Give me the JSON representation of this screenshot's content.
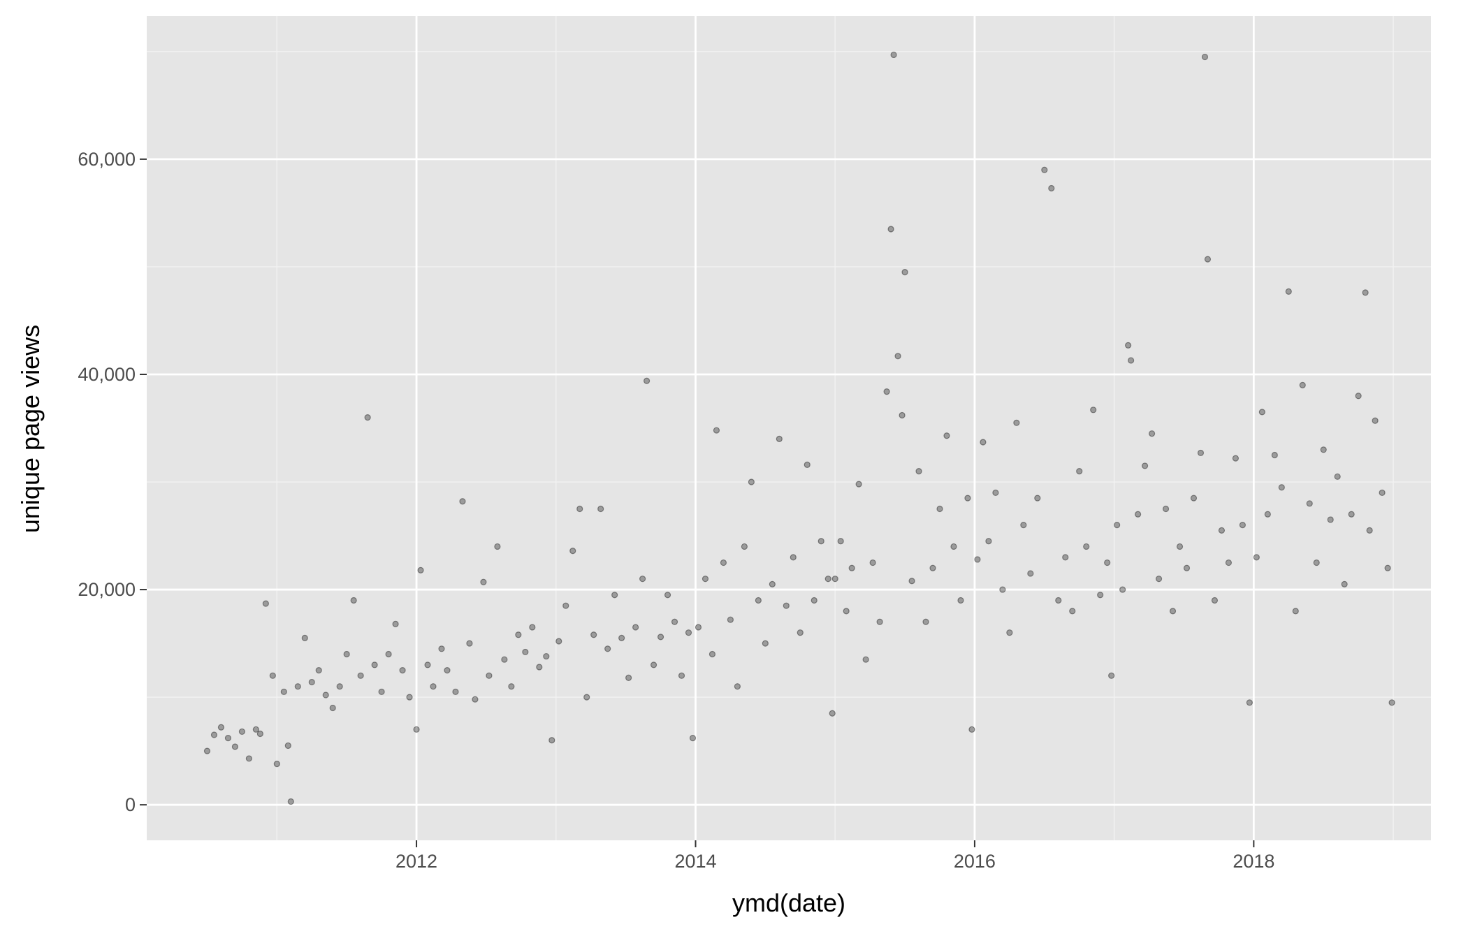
{
  "chart_data": {
    "type": "scatter",
    "x_label": "ymd(date)",
    "y_label": "unique page views",
    "x": [
      2010.5,
      2010.55,
      2010.6,
      2010.65,
      2010.7,
      2010.75,
      2010.8,
      2010.85,
      2010.88,
      2010.92,
      2010.97,
      2011.0,
      2011.05,
      2011.08,
      2011.1,
      2011.15,
      2011.2,
      2011.25,
      2011.3,
      2011.35,
      2011.4,
      2011.45,
      2011.5,
      2011.55,
      2011.6,
      2011.65,
      2011.7,
      2011.75,
      2011.8,
      2011.85,
      2011.9,
      2011.95,
      2012.0,
      2012.03,
      2012.08,
      2012.12,
      2012.18,
      2012.22,
      2012.28,
      2012.33,
      2012.38,
      2012.42,
      2012.48,
      2012.52,
      2012.58,
      2012.63,
      2012.68,
      2012.73,
      2012.78,
      2012.83,
      2012.88,
      2012.93,
      2012.97,
      2013.02,
      2013.07,
      2013.12,
      2013.17,
      2013.22,
      2013.27,
      2013.32,
      2013.37,
      2013.42,
      2013.47,
      2013.52,
      2013.57,
      2013.62,
      2013.65,
      2013.7,
      2013.75,
      2013.8,
      2013.85,
      2013.9,
      2013.95,
      2013.98,
      2014.02,
      2014.07,
      2014.12,
      2014.15,
      2014.2,
      2014.25,
      2014.3,
      2014.35,
      2014.4,
      2014.45,
      2014.5,
      2014.55,
      2014.6,
      2014.65,
      2014.7,
      2014.75,
      2014.8,
      2014.85,
      2014.9,
      2014.95,
      2014.98,
      2015.0,
      2015.04,
      2015.08,
      2015.12,
      2015.17,
      2015.22,
      2015.27,
      2015.32,
      2015.37,
      2015.4,
      2015.42,
      2015.45,
      2015.48,
      2015.5,
      2015.55,
      2015.6,
      2015.65,
      2015.7,
      2015.75,
      2015.8,
      2015.85,
      2015.9,
      2015.95,
      2015.98,
      2016.02,
      2016.06,
      2016.1,
      2016.15,
      2016.2,
      2016.25,
      2016.3,
      2016.35,
      2016.4,
      2016.45,
      2016.5,
      2016.55,
      2016.6,
      2016.65,
      2016.7,
      2016.75,
      2016.8,
      2016.85,
      2016.9,
      2016.95,
      2016.98,
      2017.02,
      2017.06,
      2017.1,
      2017.12,
      2017.17,
      2017.22,
      2017.27,
      2017.32,
      2017.37,
      2017.42,
      2017.47,
      2017.52,
      2017.57,
      2017.62,
      2017.65,
      2017.67,
      2017.72,
      2017.77,
      2017.82,
      2017.87,
      2017.92,
      2017.97,
      2018.02,
      2018.06,
      2018.1,
      2018.15,
      2018.2,
      2018.25,
      2018.3,
      2018.35,
      2018.4,
      2018.45,
      2018.5,
      2018.55,
      2018.6,
      2018.65,
      2018.7,
      2018.75,
      2018.8,
      2018.83,
      2018.87,
      2018.92,
      2018.96,
      2018.99
    ],
    "values": [
      5000,
      6500,
      7200,
      6200,
      5400,
      6800,
      4300,
      7000,
      6600,
      18700,
      12000,
      3800,
      10500,
      5500,
      300,
      11000,
      15500,
      11400,
      12500,
      10200,
      9000,
      11000,
      14000,
      19000,
      12000,
      36000,
      13000,
      10500,
      14000,
      16800,
      12500,
      10000,
      7000,
      21800,
      13000,
      11000,
      14500,
      12500,
      10500,
      28200,
      15000,
      9800,
      20700,
      12000,
      24000,
      13500,
      11000,
      15800,
      14200,
      16500,
      12800,
      13800,
      6000,
      15200,
      18500,
      23600,
      27500,
      10000,
      15800,
      27500,
      14500,
      19500,
      15500,
      11800,
      16500,
      21000,
      39400,
      13000,
      15600,
      19500,
      17000,
      12000,
      16000,
      6200,
      16500,
      21000,
      14000,
      34800,
      22500,
      17200,
      11000,
      24000,
      30000,
      19000,
      15000,
      20500,
      34000,
      18500,
      23000,
      16000,
      31600,
      19000,
      24500,
      21000,
      8500,
      21000,
      24500,
      18000,
      22000,
      29800,
      13500,
      22500,
      17000,
      38400,
      53500,
      69700,
      41700,
      36200,
      49500,
      20800,
      31000,
      17000,
      22000,
      27500,
      34300,
      24000,
      19000,
      28500,
      7000,
      22800,
      33700,
      24500,
      29000,
      20000,
      16000,
      35500,
      26000,
      21500,
      28500,
      59000,
      57300,
      19000,
      23000,
      18000,
      31000,
      24000,
      36700,
      19500,
      22500,
      12000,
      26000,
      20000,
      42700,
      41300,
      27000,
      31500,
      34500,
      21000,
      27500,
      18000,
      24000,
      22000,
      28500,
      32700,
      69500,
      50700,
      19000,
      25500,
      22500,
      32200,
      26000,
      9500,
      23000,
      36500,
      27000,
      32500,
      29500,
      47700,
      18000,
      39000,
      28000,
      22500,
      33000,
      26500,
      30500,
      20500,
      27000,
      38000,
      47600,
      25500,
      35700,
      29000,
      22000,
      9500
    ],
    "color": "#000000",
    "opacity": 0.4,
    "xlim": [
      2010.067,
      2019.27
    ],
    "ylim": [
      -3300,
      73300
    ],
    "xticks": [
      2012,
      2014,
      2016,
      2018
    ],
    "yticks": [
      0,
      {
        "value": 20000,
        "label": "20,000"
      },
      {
        "value": 40000,
        "label": "40,000"
      },
      {
        "value": 60000,
        "label": "60,000"
      }
    ],
    "xminorticks": [
      2011,
      2013,
      2015,
      2017,
      2019
    ],
    "yminorticks": [
      10000,
      30000,
      50000,
      70000
    ],
    "grid": true
  }
}
